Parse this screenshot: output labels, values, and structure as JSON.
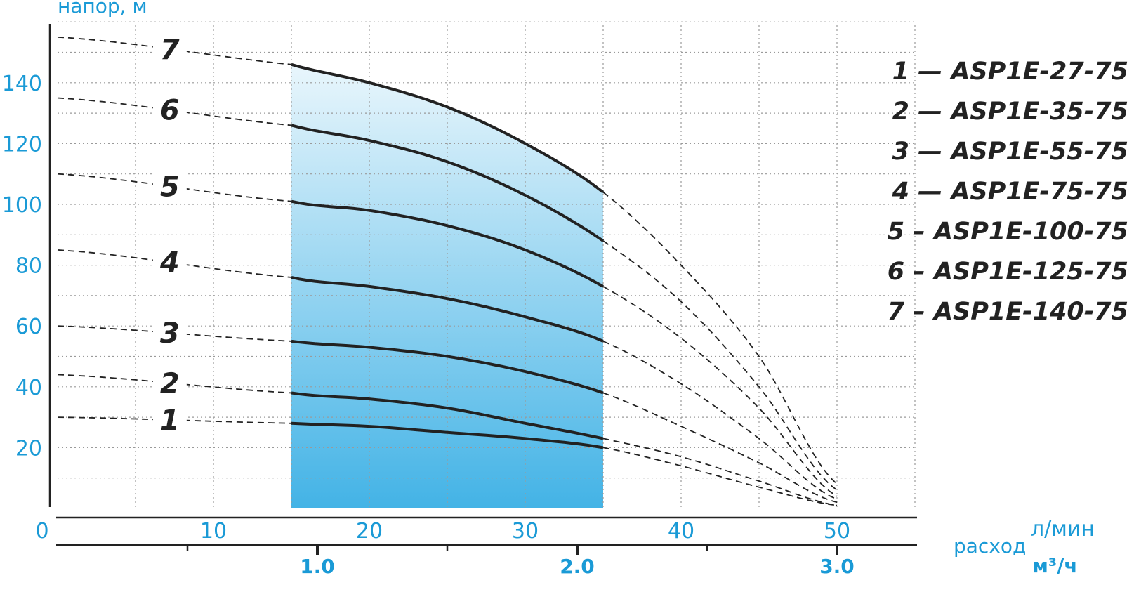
{
  "colors": {
    "accent": "#1a9ad6",
    "curve": "#222222",
    "grid": "#9a9a9a",
    "band_top": "#e9f6fc",
    "band_bottom": "#43b3e6"
  },
  "chart_data": {
    "type": "line",
    "ylabel": "напор, м",
    "xlabel": "расход",
    "x_unit_top": "л/мин",
    "x_unit_bottom": "м³/ч",
    "xlim": [
      0,
      55
    ],
    "ylim": [
      0,
      160
    ],
    "y_ticks": [
      "20",
      "40",
      "60",
      "80",
      "100",
      "120",
      "140"
    ],
    "x_ticks": [
      "0",
      "10",
      "20",
      "30",
      "40",
      "50"
    ],
    "x_ticks_m3h": [
      "1.0",
      "2.0",
      "3.0"
    ],
    "grid": true,
    "working_range_lpm": [
      15,
      35
    ],
    "legend": [
      "1 — ASP1E-27-75",
      "2 — ASP1E-35-75",
      "3 — ASP1E-55-75",
      "4 — ASP1E-75-75",
      "5 – ASP1E-100-75",
      "6 – ASP1E-125-75",
      "7 – ASP1E-140-75"
    ],
    "series": [
      {
        "name": "1",
        "x": [
          0,
          15,
          20,
          25,
          30,
          35,
          40,
          45,
          50
        ],
        "y": [
          30,
          28,
          27,
          25,
          23,
          20,
          14,
          7,
          1
        ]
      },
      {
        "name": "2",
        "x": [
          0,
          15,
          20,
          25,
          30,
          35,
          40,
          45,
          50
        ],
        "y": [
          44,
          38,
          36,
          33,
          28,
          23,
          17,
          9,
          1
        ]
      },
      {
        "name": "3",
        "x": [
          0,
          15,
          20,
          25,
          30,
          35,
          40,
          45,
          50
        ],
        "y": [
          60,
          55,
          53,
          50,
          45,
          38,
          27,
          15,
          2
        ]
      },
      {
        "name": "4",
        "x": [
          0,
          15,
          20,
          25,
          30,
          35,
          40,
          45,
          50
        ],
        "y": [
          85,
          76,
          73,
          69,
          63,
          55,
          41,
          23,
          3
        ]
      },
      {
        "name": "5",
        "x": [
          0,
          15,
          20,
          25,
          30,
          35,
          40,
          45,
          50
        ],
        "y": [
          110,
          101,
          98,
          93,
          85,
          73,
          56,
          33,
          4
        ]
      },
      {
        "name": "6",
        "x": [
          0,
          15,
          20,
          25,
          30,
          35,
          40,
          45,
          50
        ],
        "y": [
          135,
          126,
          121,
          114,
          103,
          88,
          68,
          40,
          6
        ]
      },
      {
        "name": "7",
        "x": [
          0,
          15,
          20,
          25,
          30,
          35,
          40,
          45,
          50
        ],
        "y": [
          155,
          146,
          140,
          132,
          120,
          104,
          80,
          50,
          8
        ]
      }
    ]
  }
}
